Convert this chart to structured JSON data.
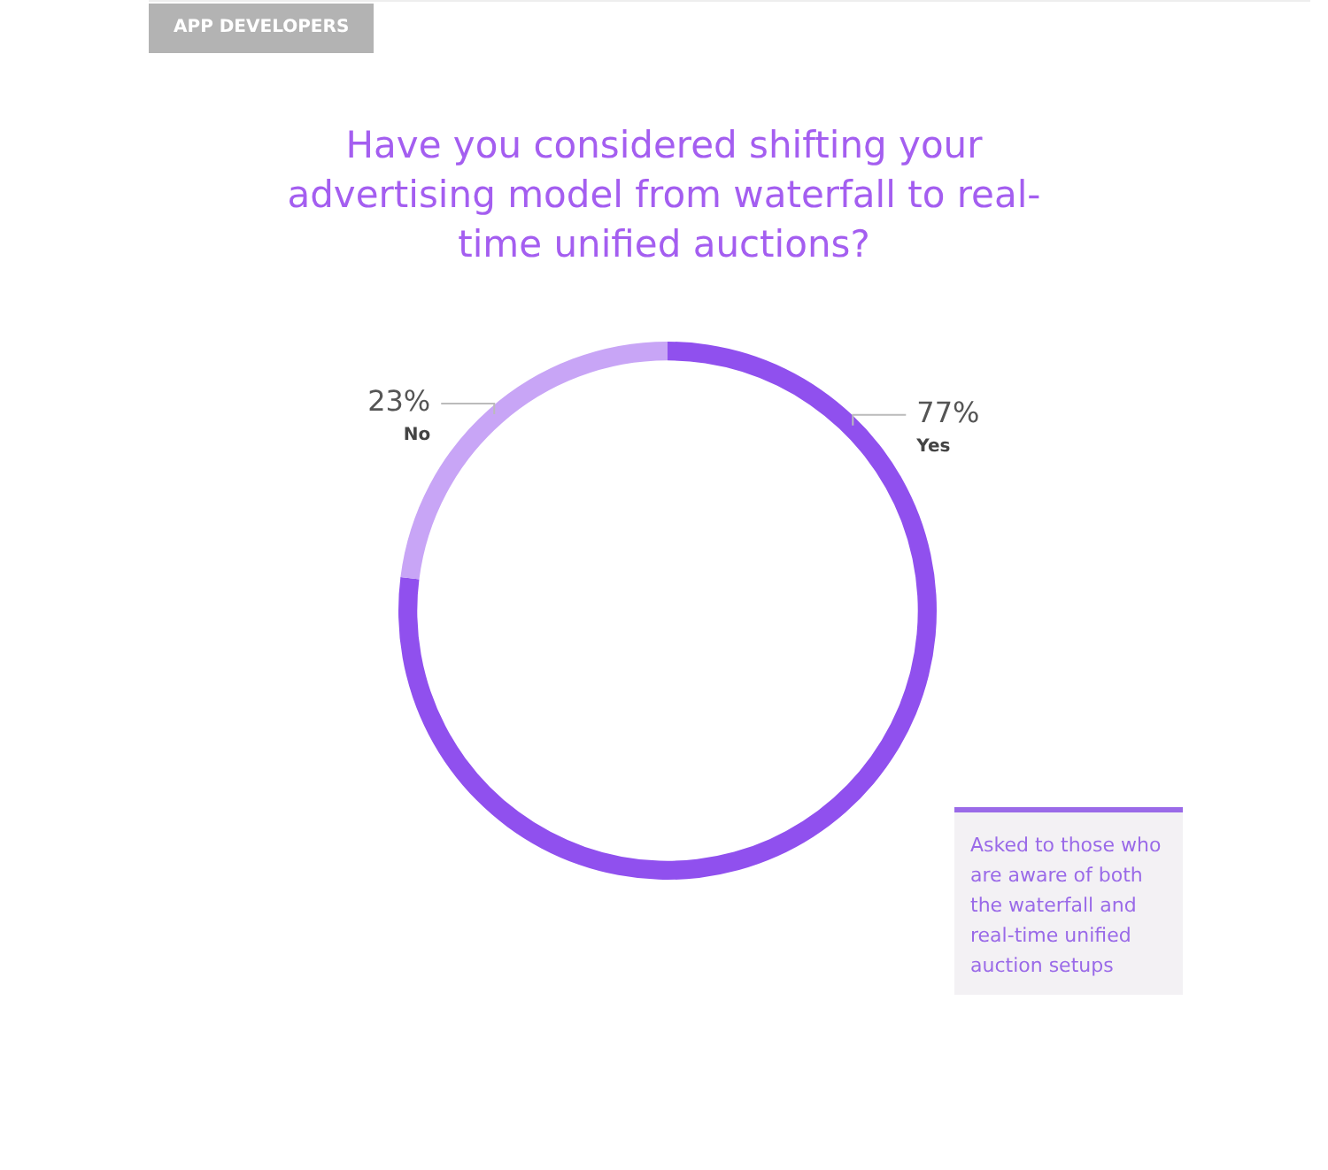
{
  "chart_data": {
    "type": "donut",
    "title": "Have you considered shifting your advertising model from waterfall to real-time unified auctions?",
    "categories": [
      "Yes",
      "No"
    ],
    "values": [
      77,
      23
    ],
    "colors": [
      "#9050ee",
      "#c8a5f6"
    ],
    "value_labels": [
      "77%",
      "23%"
    ],
    "annotations": [
      "APP DEVELOPERS",
      "Asked to those who are aware of both the waterfall and real-time unified auction setups"
    ],
    "legend": false
  }
}
